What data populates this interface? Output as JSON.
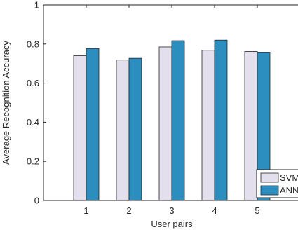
{
  "chart_data": {
    "type": "bar",
    "categories": [
      "1",
      "2",
      "3",
      "4",
      "5"
    ],
    "series": [
      {
        "name": "SVM",
        "values": [
          0.74,
          0.718,
          0.785,
          0.768,
          0.762
        ],
        "color": "#e4dfec"
      },
      {
        "name": "ANN",
        "values": [
          0.777,
          0.727,
          0.817,
          0.82,
          0.758
        ],
        "color": "#2c8ebe"
      }
    ],
    "xlabel": "User pairs",
    "ylabel": "Average Recognition Accuracy",
    "ylim": [
      0,
      1
    ],
    "yticks": [
      0,
      0.2,
      0.4,
      0.6,
      0.8,
      1
    ],
    "yticklabels": [
      "0",
      "0.2",
      "0.4",
      "0.6",
      "0.8",
      "1"
    ],
    "grid": false,
    "legend_placement": "bottom-right",
    "legend_labels": [
      "SVM",
      "ANN"
    ]
  }
}
